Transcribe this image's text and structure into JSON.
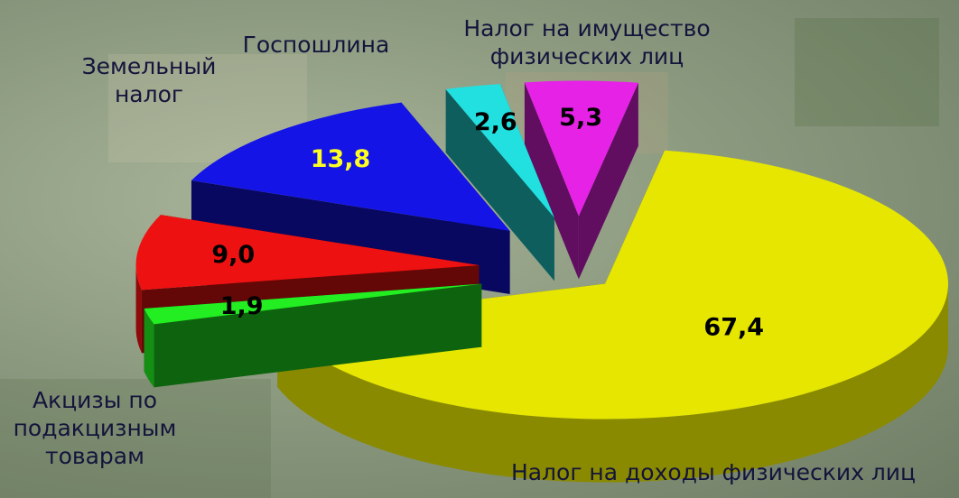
{
  "chart_data": {
    "type": "pie3d",
    "categories": [
      "Налог на доходы физических лиц",
      "Акцизы по подакцизным товарам",
      "Налог на имущество физических лиц",
      "Земельный налог",
      "Госпошлина",
      "Налог на имущество физических лиц"
    ],
    "values": [
      67.4,
      1.9,
      9.0,
      13.8,
      2.6,
      5.3
    ],
    "value_labels": [
      "67,4",
      "1,9",
      "9,0",
      "13,8",
      "2,6",
      "5,3"
    ],
    "colors": [
      "#e6e600",
      "#22ee22",
      "#ee1111",
      "#1414e6",
      "#22e0e0",
      "#e622e6"
    ],
    "value_label_colors": [
      "#000000",
      "#000000",
      "#000000",
      "#ffff22",
      "#000000",
      "#000000"
    ]
  }
}
